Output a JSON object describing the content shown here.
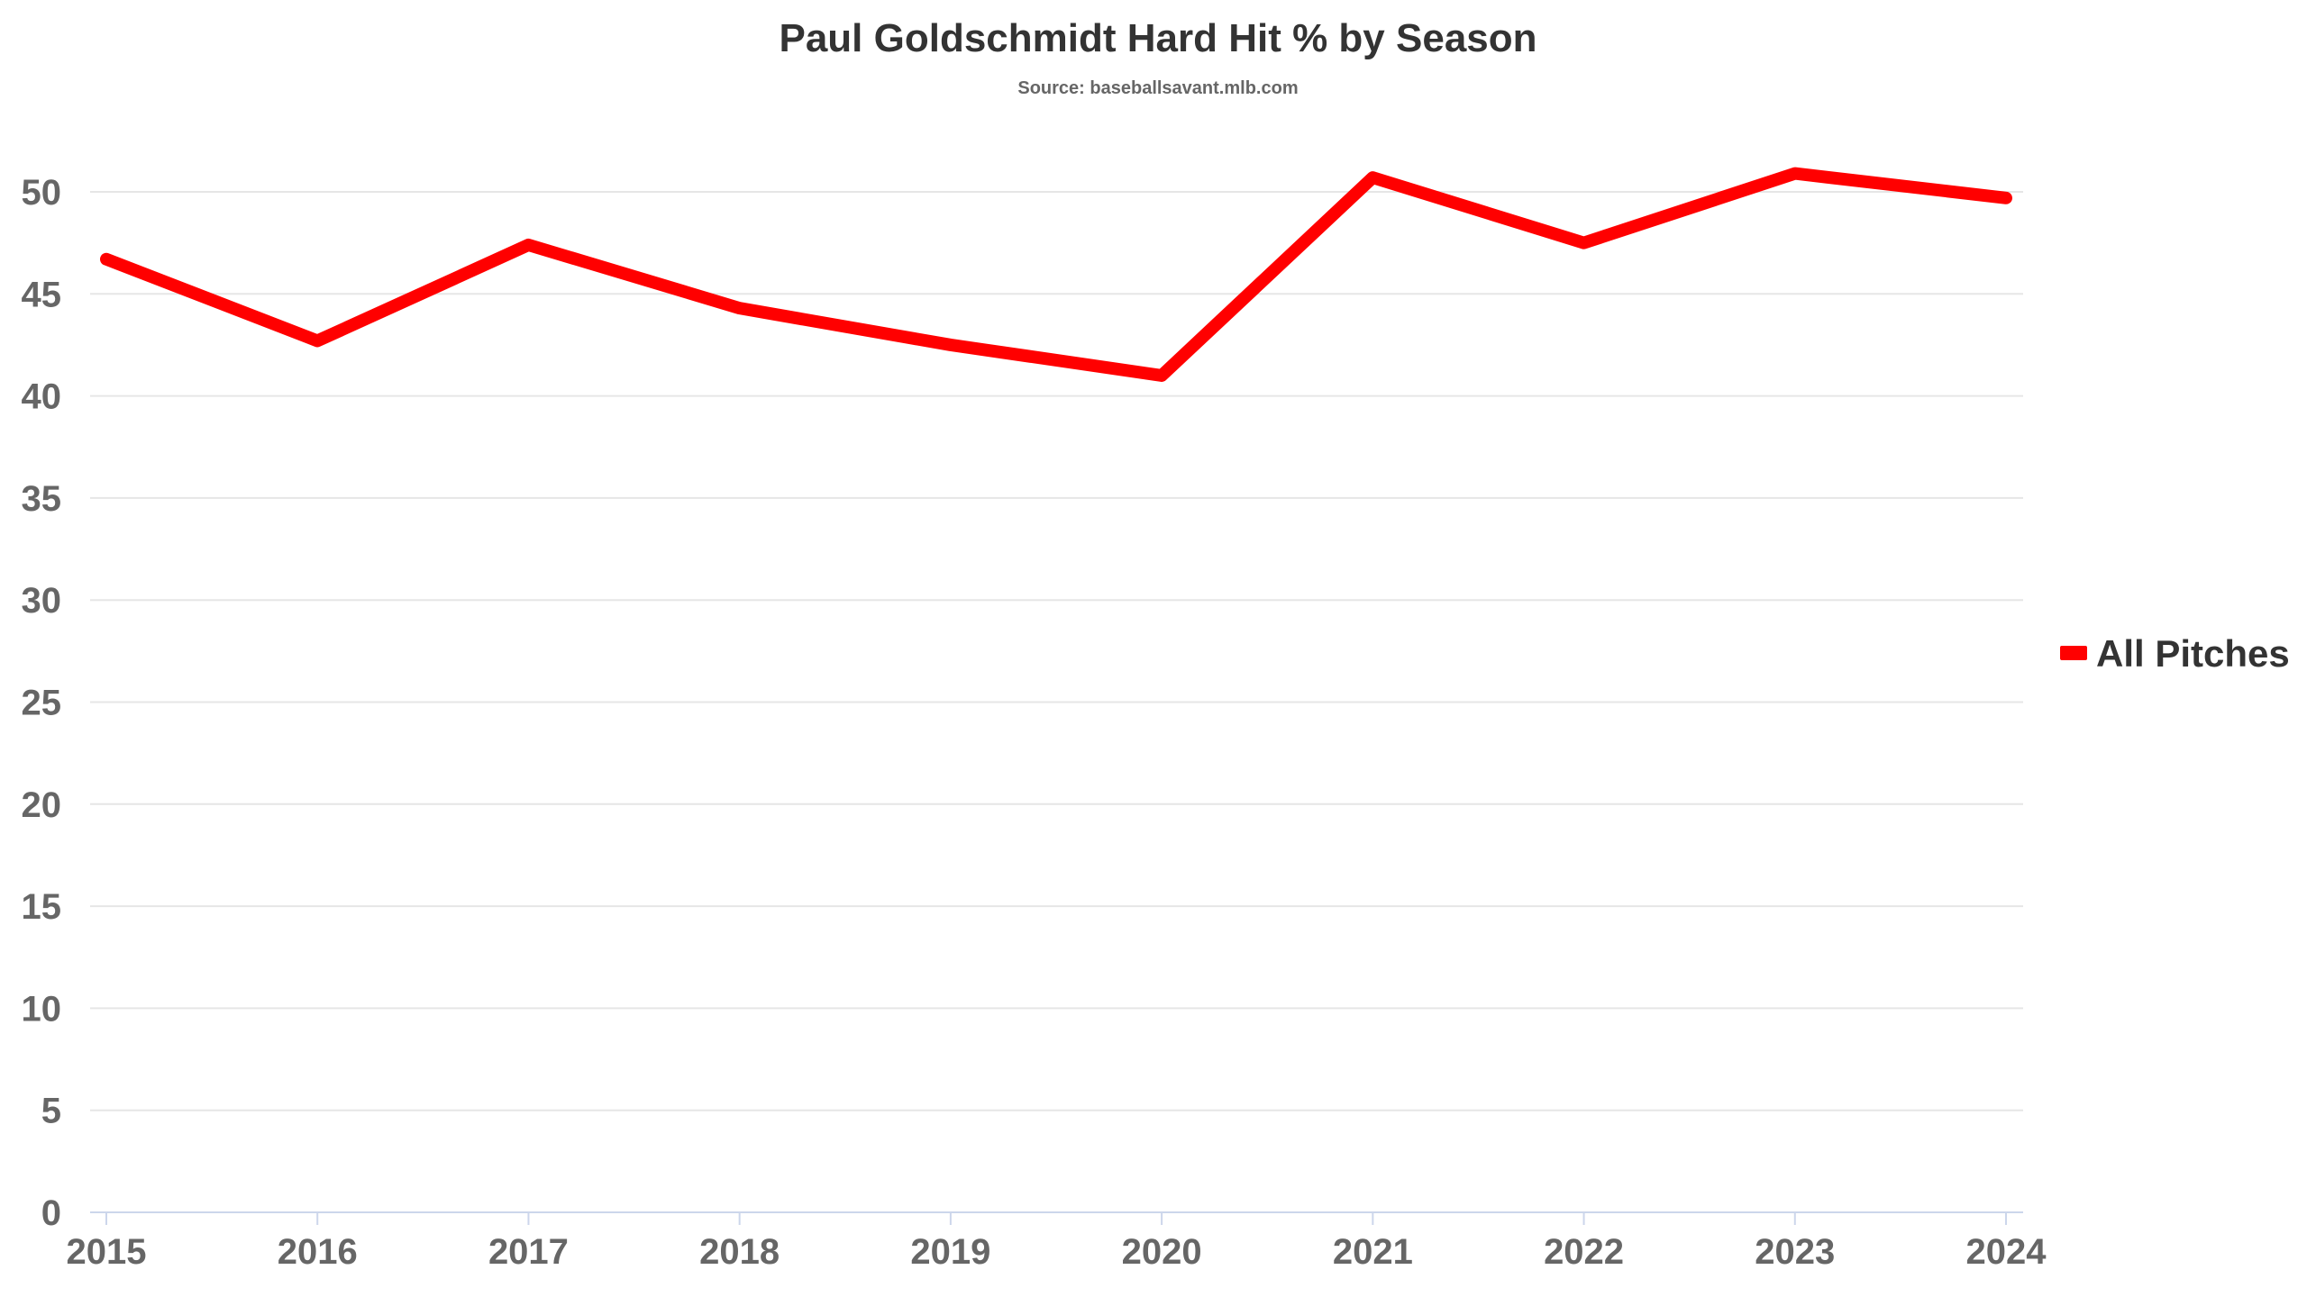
{
  "chart_data": {
    "type": "line",
    "title": "Paul Goldschmidt Hard Hit % by Season",
    "subtitle": "Source: baseballsavant.mlb.com",
    "xlabel": "",
    "ylabel": "",
    "categories": [
      "2015",
      "2016",
      "2017",
      "2018",
      "2019",
      "2020",
      "2021",
      "2022",
      "2023",
      "2024"
    ],
    "series": [
      {
        "name": "All Pitches",
        "color": "#ff0000",
        "values": [
          46.7,
          42.7,
          47.4,
          44.3,
          42.5,
          41.0,
          50.7,
          47.5,
          50.9,
          49.7
        ]
      }
    ],
    "ylim": [
      0,
      50
    ],
    "yticks": [
      0,
      5,
      10,
      15,
      20,
      25,
      30,
      35,
      40,
      45,
      50
    ],
    "grid": true,
    "legend_position": "right"
  }
}
